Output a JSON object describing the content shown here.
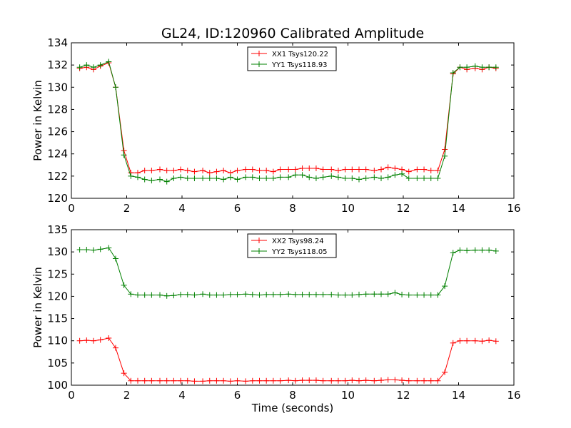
{
  "title": "GL24, ID:120960 Calibrated Amplitude",
  "xlabel": "Time (seconds)",
  "chart_data": [
    {
      "type": "line",
      "ylabel": "Power in Kelvin",
      "xlim": [
        0,
        16
      ],
      "ylim": [
        120,
        134
      ],
      "xticks": [
        0,
        2,
        4,
        6,
        8,
        10,
        12,
        14,
        16
      ],
      "yticks": [
        120,
        122,
        124,
        126,
        128,
        130,
        132,
        134
      ],
      "legend_position": "top-center",
      "marker": "+",
      "grid": false,
      "x": [
        0.3,
        0.55,
        0.8,
        1.05,
        1.35,
        1.6,
        1.9,
        2.15,
        2.4,
        2.65,
        2.9,
        3.2,
        3.45,
        3.7,
        3.95,
        4.2,
        4.45,
        4.75,
        5.0,
        5.25,
        5.5,
        5.75,
        6.0,
        6.3,
        6.55,
        6.8,
        7.05,
        7.3,
        7.55,
        7.85,
        8.1,
        8.35,
        8.6,
        8.85,
        9.1,
        9.4,
        9.65,
        9.9,
        10.15,
        10.4,
        10.65,
        10.95,
        11.2,
        11.45,
        11.7,
        11.95,
        12.2,
        12.5,
        12.75,
        13.0,
        13.25,
        13.5,
        13.8,
        14.05,
        14.3,
        14.6,
        14.85,
        15.1,
        15.35
      ],
      "series": [
        {
          "name": "XX1 Tsys120.22",
          "color": "#ff0000",
          "values": [
            131.7,
            131.8,
            131.6,
            131.9,
            132.2,
            130.0,
            124.3,
            122.3,
            122.3,
            122.5,
            122.5,
            122.6,
            122.5,
            122.5,
            122.6,
            122.5,
            122.4,
            122.5,
            122.3,
            122.4,
            122.5,
            122.3,
            122.5,
            122.6,
            122.6,
            122.5,
            122.5,
            122.4,
            122.6,
            122.6,
            122.6,
            122.7,
            122.7,
            122.7,
            122.6,
            122.6,
            122.5,
            122.6,
            122.6,
            122.6,
            122.6,
            122.5,
            122.6,
            122.8,
            122.7,
            122.6,
            122.4,
            122.6,
            122.6,
            122.5,
            122.5,
            124.4,
            131.2,
            131.8,
            131.6,
            131.7,
            131.6,
            131.8,
            131.7
          ]
        },
        {
          "name": "YY1 Tsys118.93",
          "color": "#008000",
          "values": [
            131.8,
            132.0,
            131.8,
            132.0,
            132.3,
            130.0,
            123.9,
            122.0,
            121.9,
            121.7,
            121.6,
            121.7,
            121.5,
            121.8,
            121.9,
            121.8,
            121.8,
            121.8,
            121.8,
            121.8,
            121.7,
            121.9,
            121.7,
            121.9,
            121.9,
            121.8,
            121.8,
            121.8,
            121.9,
            121.9,
            122.1,
            122.1,
            121.9,
            121.8,
            121.9,
            122.0,
            121.9,
            121.8,
            121.8,
            121.7,
            121.8,
            121.9,
            121.8,
            121.9,
            122.1,
            122.2,
            121.8,
            121.8,
            121.8,
            121.8,
            121.8,
            123.8,
            131.3,
            131.8,
            131.8,
            131.9,
            131.8,
            131.8,
            131.8
          ]
        }
      ]
    },
    {
      "type": "line",
      "ylabel": "Power in Kelvin",
      "xlabel": "Time (seconds)",
      "xlim": [
        0,
        16
      ],
      "ylim": [
        100,
        135
      ],
      "xticks": [
        0,
        2,
        4,
        6,
        8,
        10,
        12,
        14,
        16
      ],
      "yticks": [
        100,
        105,
        110,
        115,
        120,
        125,
        130,
        135
      ],
      "legend_position": "top-center",
      "marker": "+",
      "grid": false,
      "x": [
        0.3,
        0.55,
        0.8,
        1.05,
        1.35,
        1.6,
        1.9,
        2.15,
        2.4,
        2.65,
        2.9,
        3.2,
        3.45,
        3.7,
        3.95,
        4.2,
        4.45,
        4.75,
        5.0,
        5.25,
        5.5,
        5.75,
        6.0,
        6.3,
        6.55,
        6.8,
        7.05,
        7.3,
        7.55,
        7.85,
        8.1,
        8.35,
        8.6,
        8.85,
        9.1,
        9.4,
        9.65,
        9.9,
        10.15,
        10.4,
        10.65,
        10.95,
        11.2,
        11.45,
        11.7,
        11.95,
        12.2,
        12.5,
        12.75,
        13.0,
        13.25,
        13.5,
        13.8,
        14.05,
        14.3,
        14.6,
        14.85,
        15.1,
        15.35
      ],
      "series": [
        {
          "name": "XX2 Tsys98.24",
          "color": "#ff0000",
          "values": [
            110.0,
            110.1,
            110.0,
            110.2,
            110.6,
            108.4,
            102.7,
            101.0,
            101.0,
            101.0,
            101.0,
            101.0,
            101.0,
            101.0,
            101.0,
            101.0,
            100.9,
            100.9,
            101.0,
            101.0,
            101.0,
            100.9,
            101.0,
            100.9,
            101.0,
            101.0,
            101.0,
            101.0,
            101.0,
            101.1,
            101.0,
            101.1,
            101.1,
            101.1,
            101.0,
            101.0,
            101.0,
            101.0,
            101.1,
            101.0,
            101.1,
            101.0,
            101.1,
            101.2,
            101.2,
            101.1,
            101.0,
            101.0,
            101.0,
            101.0,
            101.0,
            102.9,
            109.5,
            110.0,
            110.0,
            110.0,
            109.9,
            110.1,
            109.9
          ]
        },
        {
          "name": "YY2 Tsys118.05",
          "color": "#008000",
          "values": [
            130.5,
            130.5,
            130.4,
            130.6,
            130.9,
            128.5,
            122.5,
            120.5,
            120.3,
            120.3,
            120.3,
            120.3,
            120.1,
            120.2,
            120.4,
            120.4,
            120.3,
            120.5,
            120.3,
            120.3,
            120.3,
            120.4,
            120.4,
            120.5,
            120.4,
            120.3,
            120.4,
            120.4,
            120.4,
            120.5,
            120.4,
            120.4,
            120.4,
            120.4,
            120.4,
            120.4,
            120.3,
            120.3,
            120.3,
            120.4,
            120.5,
            120.5,
            120.5,
            120.5,
            120.8,
            120.4,
            120.3,
            120.3,
            120.3,
            120.3,
            120.3,
            122.3,
            129.8,
            130.4,
            130.3,
            130.4,
            130.4,
            130.4,
            130.2
          ]
        }
      ]
    }
  ]
}
